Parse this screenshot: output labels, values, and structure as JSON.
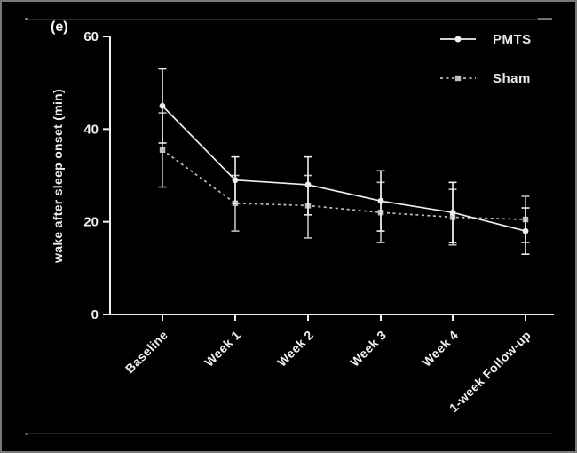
{
  "panel_label": "(e)",
  "colors": {
    "background": "#000000",
    "foreground": "#efefef",
    "sham_gray": "#bfbfbf",
    "border": "#787878",
    "artifact_line": "#333333"
  },
  "legend": {
    "pmts_label": "PMTS",
    "sham_label": "Sham"
  },
  "chart_data": {
    "type": "line",
    "title": "",
    "xlabel": "",
    "ylabel": "wake after sleep onset (min)",
    "ylim": [
      0,
      60
    ],
    "yticks": [
      0,
      20,
      40,
      60
    ],
    "grid": false,
    "legend_position": "top-right",
    "categories": [
      "Baseline",
      "Week 1",
      "Week 2",
      "Week 3",
      "Week 4",
      "1-week Follow-up"
    ],
    "series": [
      {
        "name": "PMTS",
        "style": "solid",
        "marker": "circle",
        "values": [
          45,
          29,
          28,
          24.5,
          22,
          18
        ],
        "error_upper": [
          53,
          34,
          34,
          31,
          28.5,
          23
        ],
        "error_lower": [
          37,
          24,
          21.5,
          18,
          15.5,
          13
        ]
      },
      {
        "name": "Sham",
        "style": "dashed",
        "marker": "square",
        "values": [
          35.5,
          24,
          23.5,
          22,
          21,
          20.5
        ],
        "error_upper": [
          43.5,
          30,
          30,
          28.5,
          27,
          25.5
        ],
        "error_lower": [
          27.5,
          18,
          16.5,
          15.5,
          15,
          15.5
        ]
      }
    ]
  }
}
